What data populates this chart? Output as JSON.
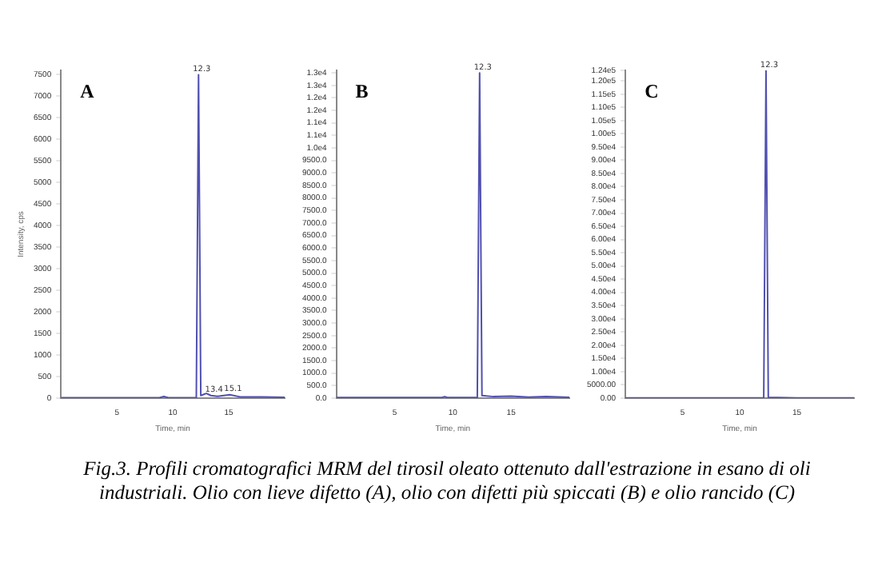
{
  "chart_data": [
    {
      "type": "line",
      "title": "A",
      "xlabel": "Time, min",
      "ylabel": "Intensity, cps",
      "xlim": [
        0,
        20
      ],
      "xticks": [
        5,
        10,
        15
      ],
      "ylim": [
        0,
        7600
      ],
      "yticks": [
        0,
        500,
        1000,
        1500,
        2000,
        2500,
        3000,
        3500,
        4000,
        4500,
        5000,
        5500,
        6000,
        6500,
        7000,
        7500
      ],
      "grid": false,
      "legend": false,
      "marker": "none",
      "series": [
        {
          "color": "#5050b0",
          "x": [
            0,
            5,
            8.8,
            9.2,
            9.6,
            12.1,
            12.3,
            12.5,
            13.0,
            13.4,
            14.0,
            15.1,
            16.0,
            18.0,
            20.0
          ],
          "values": [
            10,
            10,
            10,
            40,
            10,
            10,
            7500,
            60,
            110,
            60,
            40,
            80,
            30,
            30,
            20
          ]
        }
      ],
      "annotations": [
        {
          "text": "12.3",
          "x": 12.3,
          "y": 7500
        },
        {
          "text": "13.4",
          "x": 13.4,
          "y": 60
        },
        {
          "text": "15.1",
          "x": 15.1,
          "y": 80
        },
        "Fig.3. Profili cromatografici MRM del tirosil oleato ottenuto dall'estrazione in esano di oli industriali. Olio con lieve difetto (A), olio con difetti più spiccati (B) e olio rancido (C)"
      ]
    },
    {
      "type": "line",
      "title": "B",
      "xlabel": "Time, min",
      "xlim": [
        0,
        20
      ],
      "xticks": [
        5,
        10,
        15
      ],
      "ylim": [
        0,
        13100
      ],
      "yticks": [
        {
          "value": 0,
          "label": "0.0"
        },
        {
          "value": 500,
          "label": "500.0"
        },
        {
          "value": 1000,
          "label": "1000.0"
        },
        {
          "value": 1500,
          "label": "1500.0"
        },
        {
          "value": 2000,
          "label": "2000.0"
        },
        {
          "value": 2500,
          "label": "2500.0"
        },
        {
          "value": 3000,
          "label": "3000.0"
        },
        {
          "value": 3500,
          "label": "3500.0"
        },
        {
          "value": 4000,
          "label": "4000.0"
        },
        {
          "value": 4500,
          "label": "4500.0"
        },
        {
          "value": 5000,
          "label": "5000.0"
        },
        {
          "value": 5500,
          "label": "5500.0"
        },
        {
          "value": 6000,
          "label": "6000.0"
        },
        {
          "value": 6500,
          "label": "6500.0"
        },
        {
          "value": 7000,
          "label": "7000.0"
        },
        {
          "value": 7500,
          "label": "7500.0"
        },
        {
          "value": 8000,
          "label": "8000.0"
        },
        {
          "value": 8500,
          "label": "8500.0"
        },
        {
          "value": 9000,
          "label": "9000.0"
        },
        {
          "value": 9500,
          "label": "9500.0"
        },
        {
          "value": 10000,
          "label": "1.0e4"
        },
        {
          "value": 10500,
          "label": "1.1e4"
        },
        {
          "value": 11000,
          "label": "1.1e4"
        },
        {
          "value": 11500,
          "label": "1.2e4"
        },
        {
          "value": 12000,
          "label": "1.2e4"
        },
        {
          "value": 12500,
          "label": "1.3e4"
        },
        {
          "value": 13000,
          "label": "1.3e4"
        }
      ],
      "grid": false,
      "legend": false,
      "marker": "none",
      "series": [
        {
          "color": "#5050b0",
          "x": [
            0,
            5,
            9.0,
            9.3,
            9.6,
            12.1,
            12.3,
            12.5,
            13.5,
            15.0,
            16.5,
            18.0,
            20.0
          ],
          "values": [
            20,
            20,
            20,
            60,
            20,
            20,
            13000,
            100,
            60,
            80,
            40,
            60,
            30
          ]
        }
      ],
      "annotations": [
        {
          "text": "12.3",
          "x": 12.3,
          "y": 13000
        }
      ]
    },
    {
      "type": "line",
      "title": "C",
      "xlabel": "Time, min",
      "xlim": [
        0,
        20
      ],
      "xticks": [
        5,
        10,
        15
      ],
      "ylim": [
        0,
        124000
      ],
      "yticks": [
        {
          "value": 0,
          "label": "0.00"
        },
        {
          "value": 5000,
          "label": "5000.00"
        },
        {
          "value": 10000,
          "label": "1.00e4"
        },
        {
          "value": 15000,
          "label": "1.50e4"
        },
        {
          "value": 20000,
          "label": "2.00e4"
        },
        {
          "value": 25000,
          "label": "2.50e4"
        },
        {
          "value": 30000,
          "label": "3.00e4"
        },
        {
          "value": 35000,
          "label": "3.50e4"
        },
        {
          "value": 40000,
          "label": "4.00e4"
        },
        {
          "value": 45000,
          "label": "4.50e4"
        },
        {
          "value": 50000,
          "label": "5.00e4"
        },
        {
          "value": 55000,
          "label": "5.50e4"
        },
        {
          "value": 60000,
          "label": "6.00e4"
        },
        {
          "value": 65000,
          "label": "6.50e4"
        },
        {
          "value": 70000,
          "label": "7.00e4"
        },
        {
          "value": 75000,
          "label": "7.50e4"
        },
        {
          "value": 80000,
          "label": "8.00e4"
        },
        {
          "value": 85000,
          "label": "8.50e4"
        },
        {
          "value": 90000,
          "label": "9.00e4"
        },
        {
          "value": 95000,
          "label": "9.50e4"
        },
        {
          "value": 100000,
          "label": "1.00e5"
        },
        {
          "value": 105000,
          "label": "1.05e5"
        },
        {
          "value": 110000,
          "label": "1.10e5"
        },
        {
          "value": 115000,
          "label": "1.15e5"
        },
        {
          "value": 120000,
          "label": "1.20e5"
        },
        {
          "value": 124000,
          "label": "1.24e5"
        }
      ],
      "grid": false,
      "legend": false,
      "marker": "none",
      "series": [
        {
          "color": "#5050b0",
          "x": [
            0,
            5,
            10,
            12.1,
            12.3,
            12.5,
            15,
            20
          ],
          "values": [
            100,
            100,
            100,
            100,
            124000,
            300,
            100,
            100
          ]
        }
      ],
      "annotations": [
        {
          "text": "12.3",
          "x": 12.3,
          "y": 124000
        }
      ]
    }
  ]
}
